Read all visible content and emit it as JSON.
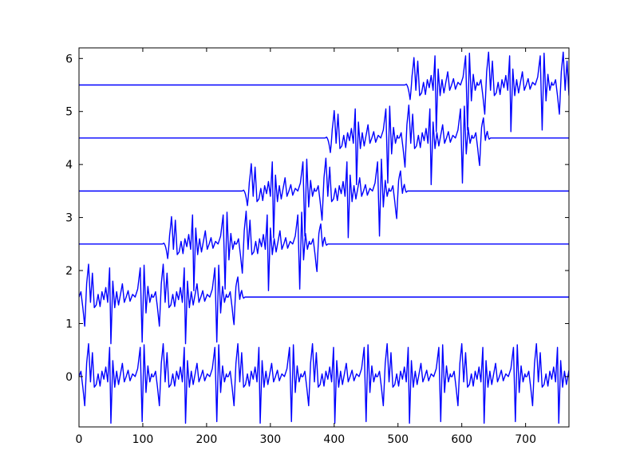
{
  "chart_data": {
    "type": "line",
    "title": "",
    "xlabel": "",
    "ylabel": "",
    "xlim": [
      0,
      768
    ],
    "ylim": [
      -0.95,
      6.2
    ],
    "grid": false,
    "legend": "none",
    "line_color": "#0000ff",
    "x_ticks": [
      {
        "value": 0,
        "label": "0"
      },
      {
        "value": 100,
        "label": "100"
      },
      {
        "value": 200,
        "label": "200"
      },
      {
        "value": 300,
        "label": "300"
      },
      {
        "value": 400,
        "label": "400"
      },
      {
        "value": 500,
        "label": "500"
      },
      {
        "value": 600,
        "label": "600"
      },
      {
        "value": 700,
        "label": "700"
      }
    ],
    "y_ticks": [
      {
        "value": 0,
        "label": "0"
      },
      {
        "value": 1,
        "label": "1"
      },
      {
        "value": 2,
        "label": "2"
      },
      {
        "value": 3,
        "label": "3"
      },
      {
        "value": 4,
        "label": "4"
      },
      {
        "value": 5,
        "label": "5"
      },
      {
        "value": 6,
        "label": "6"
      }
    ],
    "burst_pattern": [
      [
        0,
        0.0
      ],
      [
        3,
        0.1
      ],
      [
        6,
        -0.2
      ],
      [
        9,
        -0.55
      ],
      [
        12,
        0.25
      ],
      [
        15,
        0.62
      ],
      [
        18,
        -0.1
      ],
      [
        21,
        0.45
      ],
      [
        24,
        -0.2
      ],
      [
        27,
        -0.15
      ],
      [
        30,
        0.05
      ],
      [
        33,
        -0.18
      ],
      [
        36,
        0.1
      ],
      [
        39,
        -0.05
      ],
      [
        42,
        0.18
      ],
      [
        45,
        -0.1
      ],
      [
        48,
        0.55
      ],
      [
        50,
        -0.88
      ],
      [
        53,
        0.3
      ],
      [
        56,
        -0.2
      ],
      [
        59,
        0.1
      ],
      [
        62,
        -0.15
      ],
      [
        65,
        0.05
      ],
      [
        68,
        0.25
      ],
      [
        71,
        -0.1
      ],
      [
        74,
        0.0
      ],
      [
        77,
        0.12
      ],
      [
        80,
        -0.08
      ],
      [
        84,
        0.05
      ],
      [
        88,
        0.0
      ],
      [
        92,
        0.15
      ],
      [
        96,
        0.55
      ],
      [
        99,
        -0.85
      ],
      [
        102,
        0.6
      ],
      [
        105,
        -0.3
      ],
      [
        108,
        0.2
      ],
      [
        111,
        -0.1
      ],
      [
        114,
        0.05
      ]
    ],
    "series": [
      {
        "offset": 0.0,
        "burst_start": 0,
        "burst_end": 768,
        "periodic": true
      },
      {
        "offset": 1.5,
        "burst_start": 0,
        "burst_end": 260,
        "periodic": true
      },
      {
        "offset": 2.5,
        "burst_start": 130,
        "burst_end": 390,
        "periodic": true
      },
      {
        "offset": 3.5,
        "burst_start": 255,
        "burst_end": 515,
        "periodic": true
      },
      {
        "offset": 4.5,
        "burst_start": 385,
        "burst_end": 645,
        "periodic": true
      },
      {
        "offset": 5.5,
        "burst_start": 510,
        "burst_end": 768,
        "periodic": true
      }
    ]
  }
}
